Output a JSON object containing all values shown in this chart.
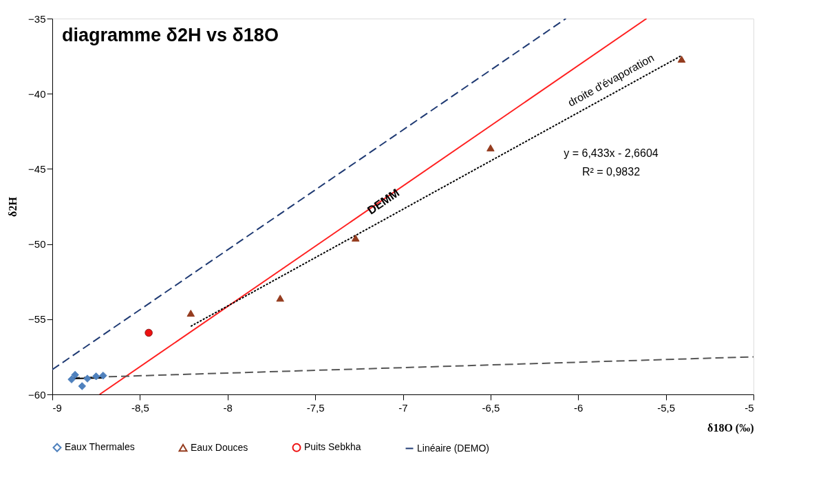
{
  "chart_data": {
    "type": "scatter",
    "title": "diagramme δ2H vs δ18O",
    "xlabel": "δ18O (‰)",
    "ylabel": "δ2H",
    "xlim": [
      -9,
      -5
    ],
    "xticks": [
      {
        "value": -9,
        "label": "-9"
      },
      {
        "value": -8.5,
        "label": "-8,5"
      },
      {
        "value": -8,
        "label": "-8"
      },
      {
        "value": -7.5,
        "label": "-7,5"
      },
      {
        "value": -7,
        "label": "-7"
      },
      {
        "value": -6.5,
        "label": "-6,5"
      },
      {
        "value": -6,
        "label": "-6"
      },
      {
        "value": -5.5,
        "label": "-5,5"
      },
      {
        "value": -5,
        "label": "-5"
      }
    ],
    "ylim": [
      -60,
      -35
    ],
    "yticks": [
      -60,
      -55,
      -50,
      -45,
      -40,
      -35
    ],
    "grid": false,
    "legend": "bottom",
    "series": [
      {
        "name": "Eaux Thermales",
        "color": "#4f81bd",
        "marker": "diamond",
        "x": [
          -8.87,
          -8.89,
          -8.83,
          -8.8,
          -8.75,
          -8.71
        ],
        "values": [
          -58.7,
          -59.0,
          -59.45,
          -58.95,
          -58.8,
          -58.75
        ]
      },
      {
        "name": "Eaux Douces",
        "color": "#953c1f",
        "marker": "triangle",
        "x": [
          -8.21,
          -7.7,
          -7.27,
          -6.5,
          -5.41
        ],
        "values": [
          -54.6,
          -53.6,
          -49.6,
          -43.6,
          -37.7
        ]
      },
      {
        "name": "Puits Sebkha",
        "color": "#ee1111",
        "marker": "circle",
        "x": [
          -8.45
        ],
        "values": [
          -55.9
        ]
      },
      {
        "type": "line",
        "name": "Linéaire (DEMO)",
        "color": "#1f3a73",
        "line_style": "dashed",
        "x": [
          -9,
          -6.07
        ],
        "values": [
          -58.35,
          -35
        ]
      },
      {
        "type": "line",
        "color": "#ff2020",
        "line_style": "solid",
        "x": [
          -8.73,
          -5.61
        ],
        "values": [
          -60,
          -35
        ]
      },
      {
        "type": "line",
        "color": "#000000",
        "line_style": "dotted",
        "x": [
          -8.21,
          -5.41
        ],
        "values": [
          -55.47,
          -37.46
        ]
      },
      {
        "type": "line",
        "color": "#555555",
        "line_style": "dashed",
        "x": [
          -8.89,
          -5
        ],
        "values": [
          -58.9,
          -57.5
        ]
      },
      {
        "type": "line",
        "color": "#000000",
        "line_style": "solid",
        "x": [
          -8.89,
          -8.71
        ],
        "values": [
          -58.95,
          -58.9
        ]
      }
    ],
    "annotations": [
      {
        "text": "DEMM",
        "x": -7.11,
        "y": -47.2
      },
      "droite d'évaporation",
      "y = 6,433x - 2,6604",
      "R² = 0,9832"
    ]
  }
}
